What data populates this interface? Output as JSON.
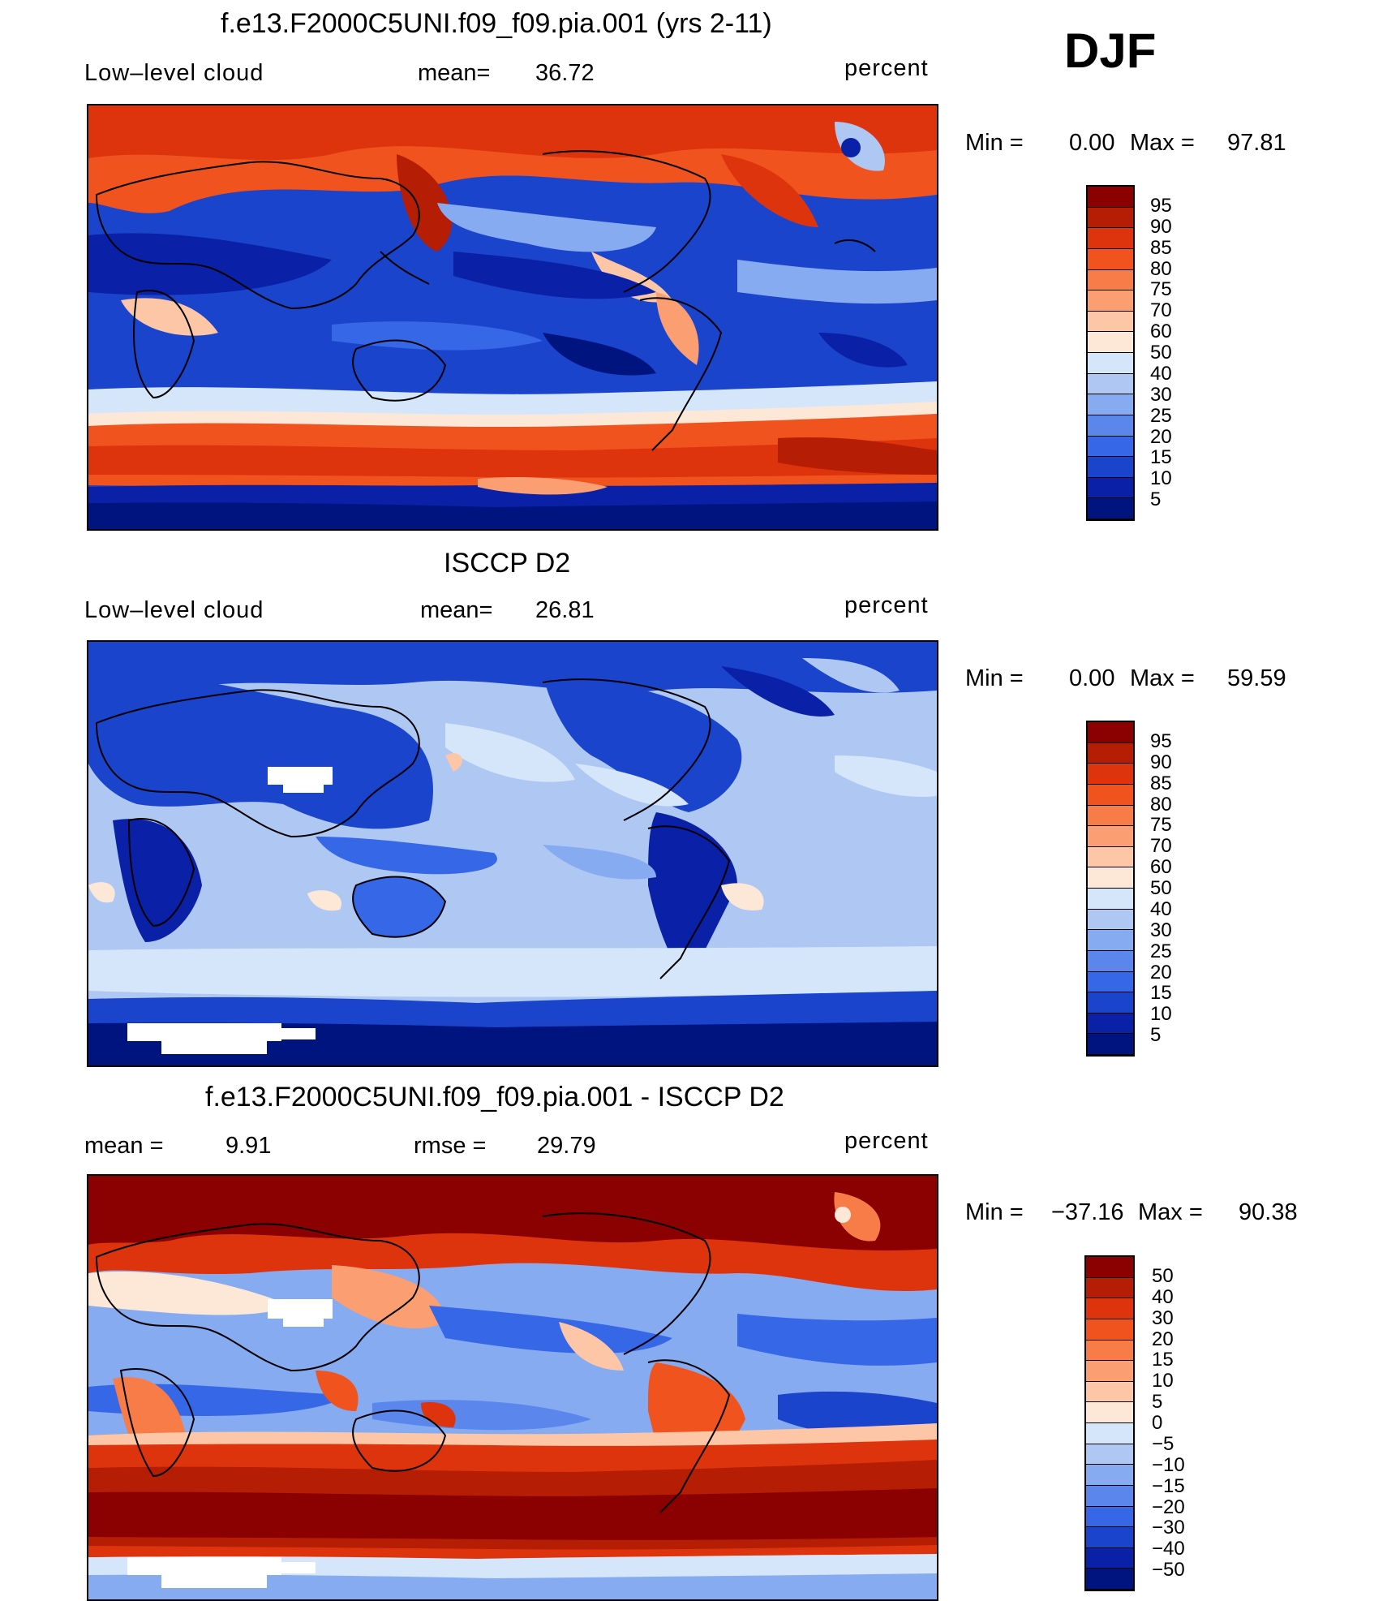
{
  "season": "DJF",
  "panels": [
    {
      "id": "model",
      "title": "f.e13.F2000C5UNI.f09_f09.pia.001 (yrs 2-11)",
      "left_label": "Low–level cloud",
      "mid_label": "mean=",
      "mid_value": "36.72",
      "units": "percent",
      "min_label": "Min =",
      "min_value": "0.00",
      "max_label": "Max =",
      "max_value": "97.81",
      "colorbar": {
        "labels": [
          "95",
          "90",
          "85",
          "80",
          "75",
          "70",
          "60",
          "50",
          "40",
          "30",
          "25",
          "20",
          "15",
          "10",
          "5"
        ],
        "colors": [
          "#8b0000",
          "#b51d05",
          "#dd340e",
          "#f0531d",
          "#f77c47",
          "#fb9e72",
          "#fdc6a6",
          "#fde8d8",
          "#d6e6fa",
          "#aec8f3",
          "#86abf0",
          "#5b86ec",
          "#3567e6",
          "#1a44cc",
          "#0a20a6",
          "#001480"
        ]
      }
    },
    {
      "id": "obs",
      "title": "ISCCP D2",
      "left_label": "Low–level cloud",
      "mid_label": "mean=",
      "mid_value": "26.81",
      "units": "percent",
      "min_label": "Min =",
      "min_value": "0.00",
      "max_label": "Max =",
      "max_value": "59.59",
      "colorbar": {
        "labels": [
          "95",
          "90",
          "85",
          "80",
          "75",
          "70",
          "60",
          "50",
          "40",
          "30",
          "25",
          "20",
          "15",
          "10",
          "5"
        ],
        "colors": [
          "#8b0000",
          "#b51d05",
          "#dd340e",
          "#f0531d",
          "#f77c47",
          "#fb9e72",
          "#fdc6a6",
          "#fde8d8",
          "#d6e6fa",
          "#aec8f3",
          "#86abf0",
          "#5b86ec",
          "#3567e6",
          "#1a44cc",
          "#0a20a6",
          "#001480"
        ]
      }
    },
    {
      "id": "diff",
      "title": "f.e13.F2000C5UNI.f09_f09.pia.001 - ISCCP D2",
      "left_label": "mean =",
      "left_value": "9.91",
      "mid_label": "rmse =",
      "mid_value": "29.79",
      "units": "percent",
      "min_label": "Min =",
      "min_value": "−37.16",
      "max_label": "Max =",
      "max_value": "90.38",
      "colorbar": {
        "labels": [
          "50",
          "40",
          "30",
          "20",
          "15",
          "10",
          "5",
          "0",
          "−5",
          "−10",
          "−15",
          "−20",
          "−30",
          "−40",
          "−50"
        ],
        "colors": [
          "#8b0000",
          "#b51d05",
          "#dd340e",
          "#f0531d",
          "#f77c47",
          "#fb9e72",
          "#fdc6a6",
          "#fde8d8",
          "#d6e6fa",
          "#aec8f3",
          "#86abf0",
          "#5b86ec",
          "#3567e6",
          "#1a44cc",
          "#0a20a6",
          "#001480"
        ]
      }
    }
  ]
}
